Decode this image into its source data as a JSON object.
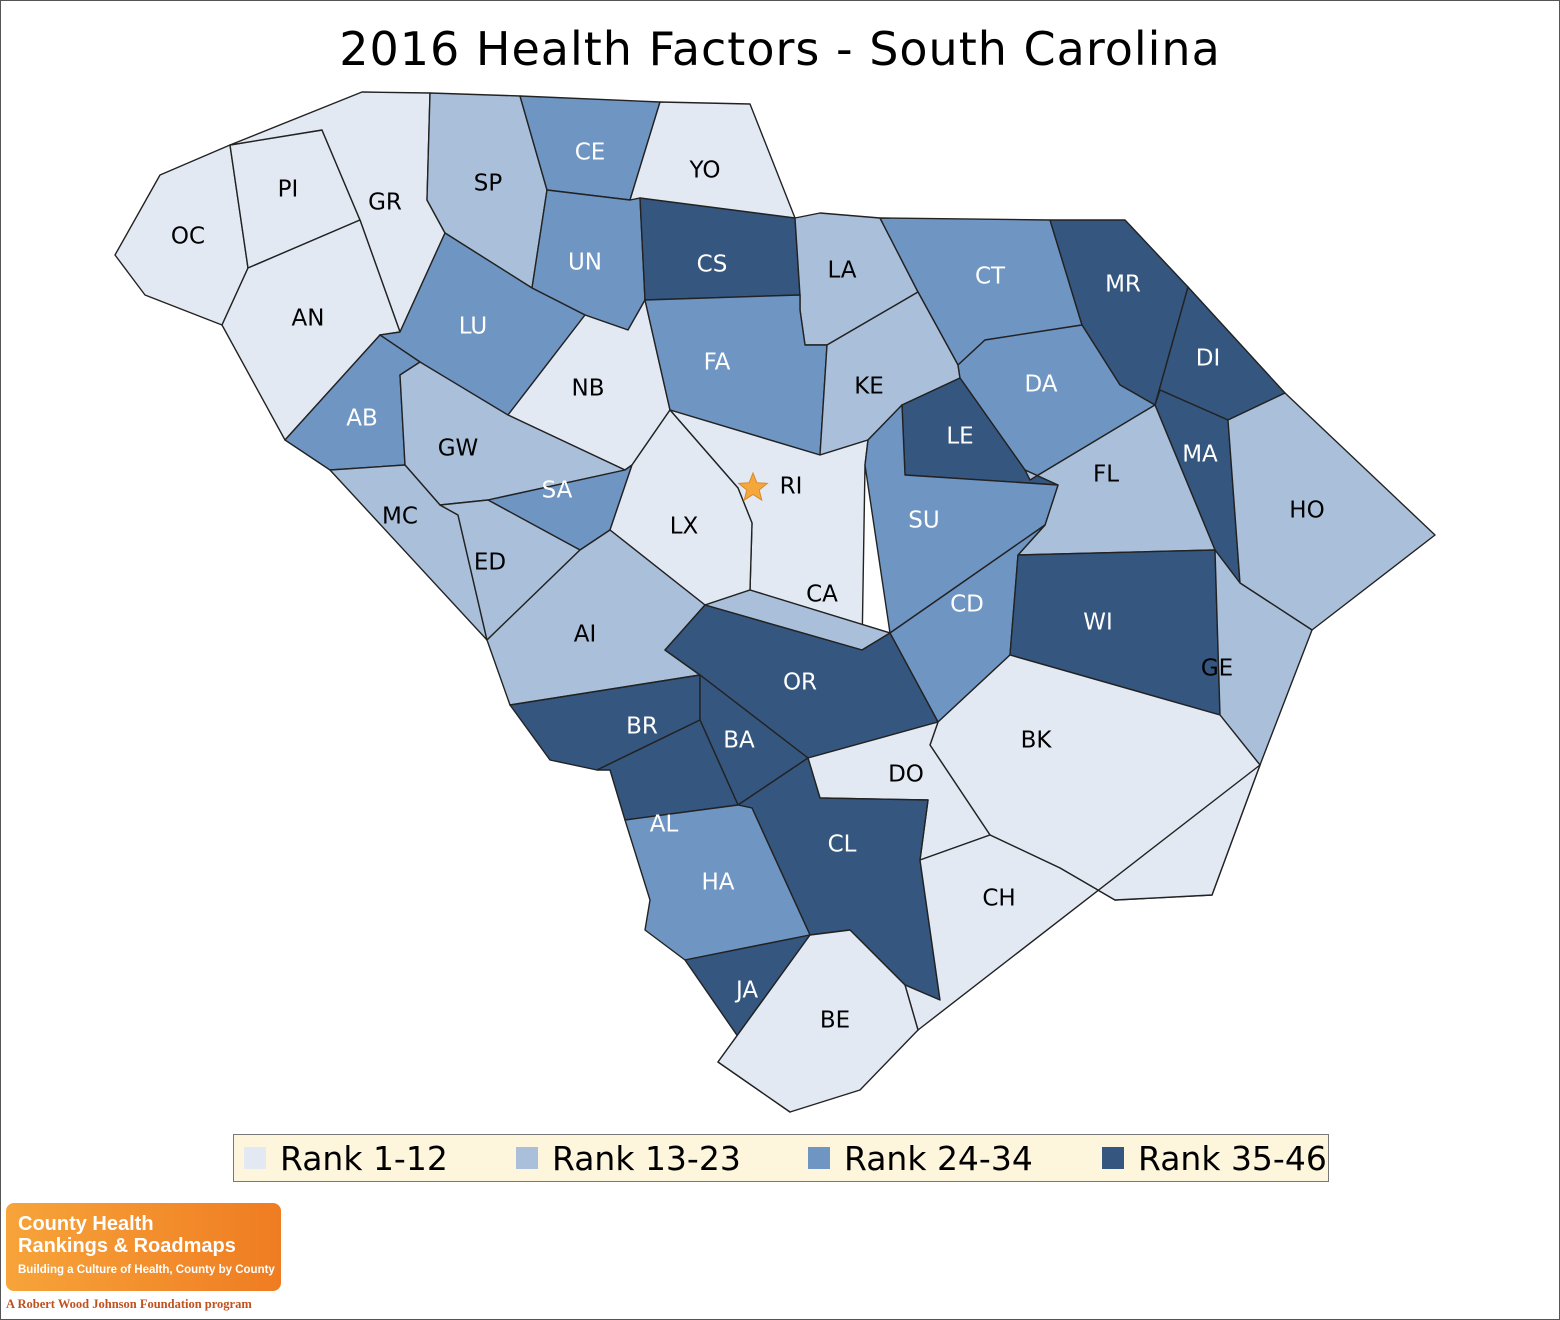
{
  "title": "2016 Health Factors - South Carolina",
  "colors": {
    "rank_1_12": "#e2e9f3",
    "rank_13_23": "#aabfd9",
    "rank_24_34": "#6f95c3",
    "rank_35_46": "#34567f",
    "capital_star": "#f5a73b",
    "legend_bg": "#fdf6dd"
  },
  "legend": [
    {
      "label": "Rank 1-12",
      "class": 1
    },
    {
      "label": "Rank 13-23",
      "class": 2
    },
    {
      "label": "Rank 24-34",
      "class": 3
    },
    {
      "label": "Rank 35-46",
      "class": 4
    }
  ],
  "counties": [
    {
      "abbr": "OC",
      "rank_class": 1
    },
    {
      "abbr": "PI",
      "rank_class": 1
    },
    {
      "abbr": "GR",
      "rank_class": 1
    },
    {
      "abbr": "AN",
      "rank_class": 1
    },
    {
      "abbr": "SP",
      "rank_class": 2
    },
    {
      "abbr": "CE",
      "rank_class": 3
    },
    {
      "abbr": "YO",
      "rank_class": 1
    },
    {
      "abbr": "UN",
      "rank_class": 3
    },
    {
      "abbr": "CS",
      "rank_class": 4
    },
    {
      "abbr": "LA",
      "rank_class": 2
    },
    {
      "abbr": "CT",
      "rank_class": 3
    },
    {
      "abbr": "MR",
      "rank_class": 4
    },
    {
      "abbr": "LU",
      "rank_class": 3
    },
    {
      "abbr": "NB",
      "rank_class": 1
    },
    {
      "abbr": "FA",
      "rank_class": 3
    },
    {
      "abbr": "KE",
      "rank_class": 2
    },
    {
      "abbr": "DA",
      "rank_class": 3
    },
    {
      "abbr": "DI",
      "rank_class": 4
    },
    {
      "abbr": "AB",
      "rank_class": 3
    },
    {
      "abbr": "GW",
      "rank_class": 2
    },
    {
      "abbr": "LE",
      "rank_class": 4
    },
    {
      "abbr": "MA",
      "rank_class": 4
    },
    {
      "abbr": "RI",
      "rank_class": 1
    },
    {
      "abbr": "FL",
      "rank_class": 2
    },
    {
      "abbr": "SA",
      "rank_class": 3
    },
    {
      "abbr": "MC",
      "rank_class": 2
    },
    {
      "abbr": "LX",
      "rank_class": 1
    },
    {
      "abbr": "SU",
      "rank_class": 3
    },
    {
      "abbr": "HO",
      "rank_class": 2
    },
    {
      "abbr": "ED",
      "rank_class": 2
    },
    {
      "abbr": "CA",
      "rank_class": 2
    },
    {
      "abbr": "CD",
      "rank_class": 3
    },
    {
      "abbr": "WI",
      "rank_class": 4
    },
    {
      "abbr": "AI",
      "rank_class": 2
    },
    {
      "abbr": "OR",
      "rank_class": 4
    },
    {
      "abbr": "GE",
      "rank_class": 2
    },
    {
      "abbr": "BR",
      "rank_class": 4
    },
    {
      "abbr": "BA",
      "rank_class": 4
    },
    {
      "abbr": "BK",
      "rank_class": 1
    },
    {
      "abbr": "DO",
      "rank_class": 1
    },
    {
      "abbr": "AL",
      "rank_class": 4
    },
    {
      "abbr": "CL",
      "rank_class": 4
    },
    {
      "abbr": "HA",
      "rank_class": 3
    },
    {
      "abbr": "CH",
      "rank_class": 1
    },
    {
      "abbr": "JA",
      "rank_class": 4
    },
    {
      "abbr": "BE",
      "rank_class": 1
    }
  ],
  "logo": {
    "line1": "County Health",
    "line2": "Rankings & Roadmaps",
    "tagline": "Building a Culture of Health, County by County",
    "sponsor": "A Robert Wood Johnson Foundation program"
  },
  "capital_icon": "star-icon"
}
